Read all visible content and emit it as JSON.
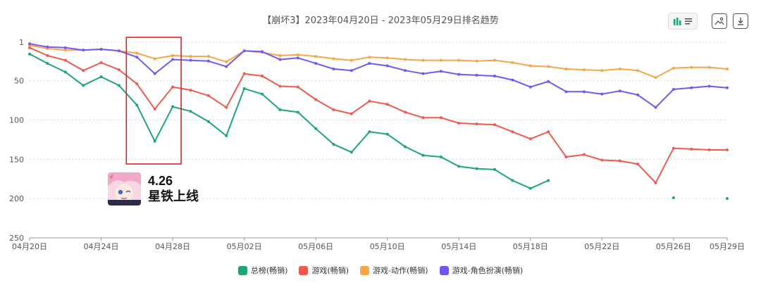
{
  "title": "【崩坏3】2023年04月20日 - 2023年05月29日排名趋势",
  "toolbar": {
    "toggle_icon": "bar-chart-list-toggle-icon",
    "image_icon": "image-export-icon",
    "download_icon": "download-icon"
  },
  "annotation": {
    "date": "4.26",
    "label": "星铁上线",
    "highlight_range": [
      "04月26日",
      "04月28日"
    ],
    "highlight_color": "#d62728"
  },
  "chart_data": {
    "type": "line",
    "x": [
      "04月20日",
      "04月21日",
      "04月22日",
      "04月23日",
      "04月24日",
      "04月25日",
      "04月26日",
      "04月27日",
      "04月28日",
      "04月29日",
      "04月30日",
      "05月01日",
      "05月02日",
      "05月03日",
      "05月04日",
      "05月05日",
      "05月06日",
      "05月07日",
      "05月08日",
      "05月09日",
      "05月10日",
      "05月11日",
      "05月12日",
      "05月13日",
      "05月14日",
      "05月15日",
      "05月16日",
      "05月17日",
      "05月18日",
      "05月19日",
      "05月20日",
      "05月21日",
      "05月22日",
      "05月23日",
      "05月24日",
      "05月25日",
      "05月26日",
      "05月27日",
      "05月28日",
      "05月29日"
    ],
    "x_ticks": [
      "04月20日",
      "04月24日",
      "04月28日",
      "05月02日",
      "05月06日",
      "05月10日",
      "05月14日",
      "05月18日",
      "05月22日",
      "05月26日",
      "05月29日"
    ],
    "y_ticks": [
      1,
      50,
      100,
      150,
      200,
      250
    ],
    "ylim": [
      1,
      250
    ],
    "y_inverted": true,
    "grid": true,
    "legend_position": "bottom",
    "series": [
      {
        "name": "总榜(畅销)",
        "color": "#1ea672",
        "values": [
          16,
          28,
          39,
          56,
          45,
          56,
          81,
          127,
          83,
          89,
          102,
          120,
          60,
          67,
          87,
          90,
          111,
          131,
          141,
          115,
          118,
          134,
          145,
          147,
          159,
          162,
          163,
          177,
          187,
          177,
          null,
          null,
          null,
          null,
          null,
          null,
          199,
          null,
          null,
          200
        ]
      },
      {
        "name": "游戏(畅销)",
        "color": "#ee5a4e",
        "values": [
          8,
          18,
          24,
          37,
          27,
          36,
          54,
          86,
          58,
          62,
          69,
          84,
          41,
          44,
          57,
          58,
          74,
          87,
          92,
          76,
          80,
          90,
          97,
          97,
          104,
          105,
          106,
          115,
          124,
          115,
          147,
          144,
          151,
          152,
          156,
          180,
          136,
          137,
          138,
          138
        ]
      },
      {
        "name": "游戏-动作(畅销)",
        "color": "#f6a54a",
        "values": [
          5,
          9,
          11,
          11,
          10,
          12,
          15,
          22,
          18,
          19,
          19,
          26,
          12,
          14,
          18,
          17,
          19,
          22,
          24,
          20,
          21,
          23,
          24,
          24,
          24,
          25,
          24,
          27,
          31,
          32,
          35,
          36,
          37,
          35,
          37,
          46,
          34,
          33,
          33,
          35
        ]
      },
      {
        "name": "游戏-角色扮演(畅销)",
        "color": "#7158ef",
        "values": [
          3,
          7,
          8,
          11,
          10,
          12,
          20,
          41,
          23,
          24,
          25,
          32,
          12,
          13,
          23,
          21,
          28,
          35,
          37,
          28,
          31,
          37,
          41,
          38,
          42,
          43,
          44,
          49,
          58,
          51,
          64,
          64,
          67,
          63,
          68,
          84,
          61,
          59,
          57,
          59
        ]
      }
    ]
  }
}
